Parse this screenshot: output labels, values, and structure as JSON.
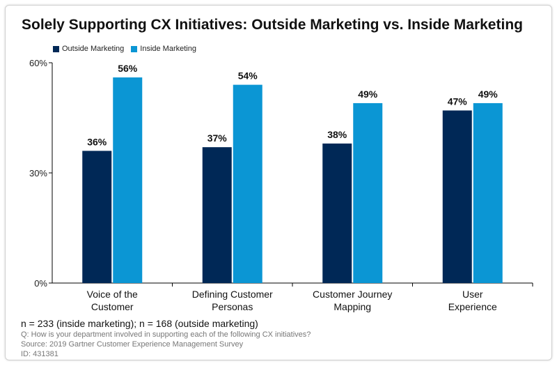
{
  "colors": {
    "outside": "#002856",
    "inside": "#0b96d4",
    "axis": "#000000"
  },
  "chart_data": {
    "type": "bar",
    "title": "Solely Supporting CX Initiatives: Outside Marketing vs. Inside Marketing",
    "categories": [
      [
        "Voice of the",
        "Customer"
      ],
      [
        "Defining Customer",
        "Personas"
      ],
      [
        "Customer Journey",
        "Mapping"
      ],
      [
        "User",
        "Experience"
      ]
    ],
    "series": [
      {
        "name": "Outside Marketing",
        "values": [
          36,
          37,
          38,
          47
        ],
        "labels": [
          "36%",
          "37%",
          "38%",
          "47%"
        ]
      },
      {
        "name": "Inside Marketing",
        "values": [
          56,
          54,
          49,
          49
        ],
        "labels": [
          "56%",
          "54%",
          "49%",
          "49%"
        ]
      }
    ],
    "ylim": [
      0,
      60
    ],
    "yticks": [
      0,
      30,
      60
    ],
    "ytick_labels": [
      "0%",
      "30%",
      "60%"
    ],
    "legend": "top-left",
    "xlabel": "",
    "ylabel": ""
  },
  "footer": {
    "sample": "n = 233 (inside marketing); n = 168 (outside marketing)",
    "question": "Q: How is your department involved in supporting each of the following CX initiatives?",
    "source": "Source: 2019 Gartner Customer Experience Management Survey",
    "id": "ID: 431381"
  }
}
